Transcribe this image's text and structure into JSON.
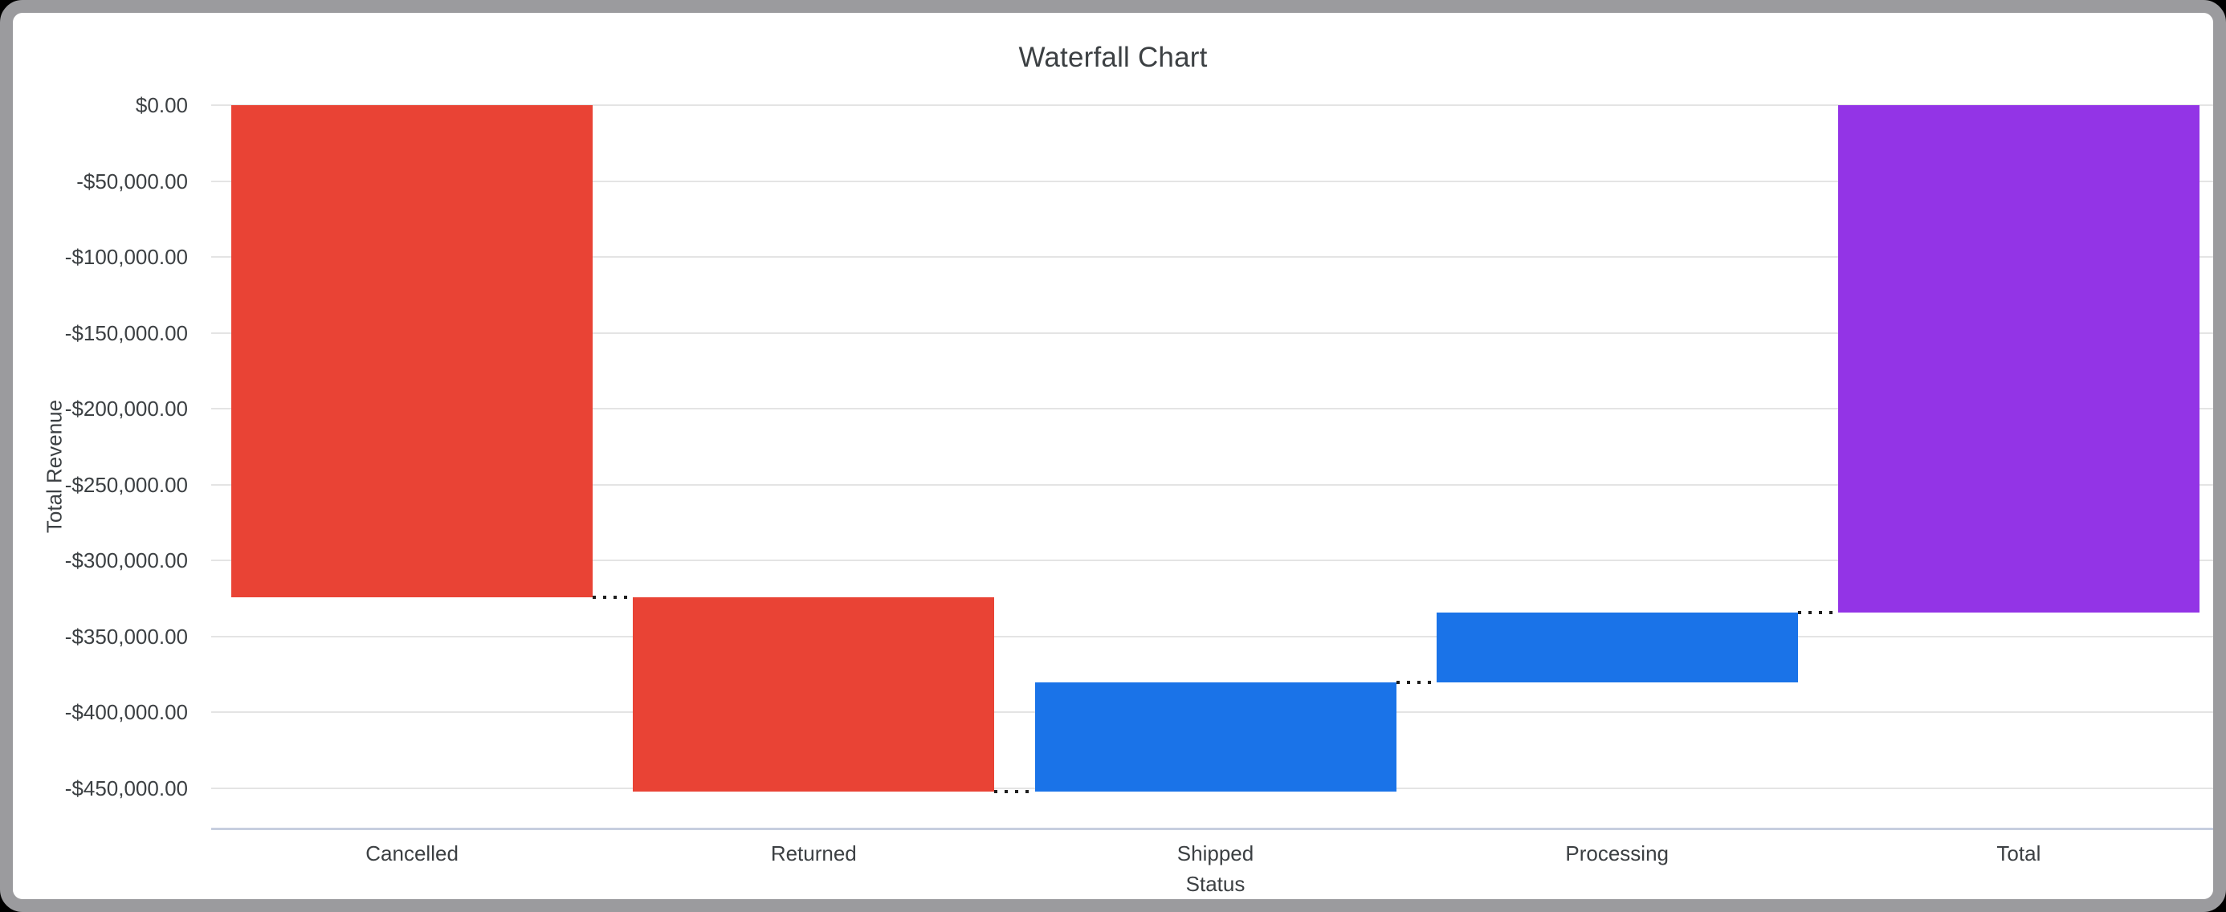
{
  "theme": {
    "backdrop": "#000000",
    "frame": "#9B9B9E",
    "canvas": "#FFFFFF",
    "text": "#3C4043",
    "grid": "#E4E4E4",
    "axis_line": "#C7CEDF",
    "connector": "#1F1F1F",
    "decrease_color": "#E94335",
    "increase_color": "#1A73E8",
    "total_color": "#9334E6"
  },
  "chart_data": {
    "type": "bar",
    "subtype": "waterfall",
    "title": "Waterfall Chart",
    "xlabel": "Status",
    "ylabel": "Total Revenue",
    "grid": true,
    "legend": "none",
    "connector_style": "dotted",
    "categories": [
      "Cancelled",
      "Returned",
      "Shipped",
      "Processing",
      "Total"
    ],
    "values": [
      -324300,
      -128100,
      72200,
      45800,
      -334400
    ],
    "series": [
      {
        "label": "Cancelled",
        "start": 0,
        "end": -324300,
        "delta": -324300,
        "role": "decrease",
        "color": "#E94335"
      },
      {
        "label": "Returned",
        "start": -324300,
        "end": -452400,
        "delta": -128100,
        "role": "decrease",
        "color": "#E94335"
      },
      {
        "label": "Shipped",
        "start": -452400,
        "end": -380200,
        "delta": 72200,
        "role": "increase",
        "color": "#1A73E8"
      },
      {
        "label": "Processing",
        "start": -380200,
        "end": -334400,
        "delta": 45800,
        "role": "increase",
        "color": "#1A73E8"
      },
      {
        "label": "Total",
        "start": 0,
        "end": -334400,
        "delta": -334400,
        "role": "total",
        "color": "#9334E6"
      }
    ],
    "y_ticks": [
      {
        "value": 0,
        "label": "$0.00"
      },
      {
        "value": -50000,
        "label": "-$50,000.00"
      },
      {
        "value": -100000,
        "label": "-$100,000.00"
      },
      {
        "value": -150000,
        "label": "-$150,000.00"
      },
      {
        "value": -200000,
        "label": "-$200,000.00"
      },
      {
        "value": -250000,
        "label": "-$250,000.00"
      },
      {
        "value": -300000,
        "label": "-$300,000.00"
      },
      {
        "value": -350000,
        "label": "-$350,000.00"
      },
      {
        "value": -400000,
        "label": "-$400,000.00"
      },
      {
        "value": -450000,
        "label": "-$450,000.00"
      }
    ],
    "ylim": [
      0,
      -476190
    ]
  }
}
